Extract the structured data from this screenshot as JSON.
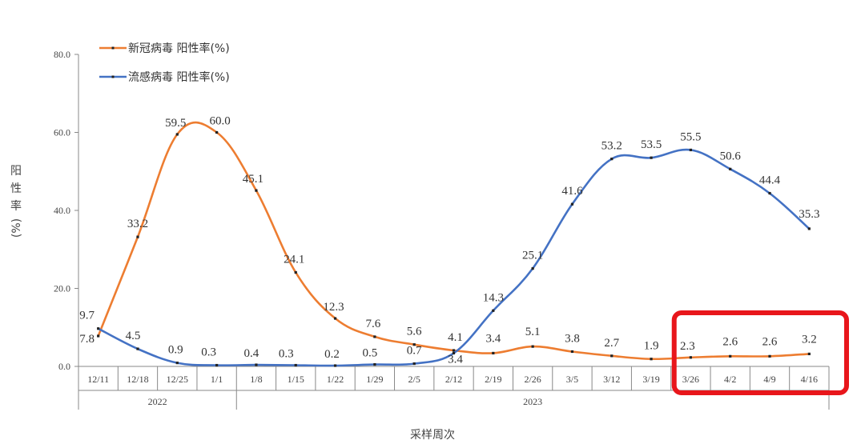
{
  "chart_data": {
    "type": "line",
    "title": "",
    "xlabel": "采样周次",
    "ylabel": [
      "阳",
      "性",
      "率",
      "(%)"
    ],
    "ylim": [
      0,
      80
    ],
    "yticks": [
      "0.0",
      "20.0",
      "40.0",
      "60.0",
      "80.0"
    ],
    "categories": [
      "12/11",
      "12/18",
      "12/25",
      "1/1",
      "1/8",
      "1/15",
      "1/22",
      "1/29",
      "2/5",
      "2/12",
      "2/19",
      "2/26",
      "3/5",
      "3/12",
      "3/19",
      "3/26",
      "4/2",
      "4/9",
      "4/16"
    ],
    "years": [
      {
        "label": "2022",
        "from": 0,
        "to": 3
      },
      {
        "label": "2023",
        "from": 4,
        "to": 18
      }
    ],
    "series": [
      {
        "name": "新冠病毒 阳性率(%)",
        "color": "#ED7D31",
        "values": [
          7.8,
          33.2,
          59.5,
          60.0,
          45.1,
          24.1,
          12.3,
          7.6,
          5.6,
          4.1,
          3.4,
          5.1,
          3.8,
          2.7,
          1.9,
          2.3,
          2.6,
          2.6,
          3.2
        ],
        "labels": [
          "7.8",
          "33.2",
          "59.5",
          "60.0",
          "45.1",
          "24.1",
          "12.3",
          "7.6",
          "5.6",
          "4.1",
          "3.4",
          "5.1",
          "3.8",
          "2.7",
          "1.9",
          "2.3",
          "2.6",
          "2.6",
          "3.2"
        ]
      },
      {
        "name": "流感病毒 阳性率(%)",
        "color": "#4472C4",
        "values": [
          9.7,
          4.5,
          0.9,
          0.3,
          0.4,
          0.3,
          0.2,
          0.5,
          0.7,
          3.4,
          14.3,
          25.1,
          41.6,
          53.2,
          53.5,
          55.5,
          50.6,
          44.4,
          35.3
        ],
        "labels": [
          "9.7",
          "4.5",
          "0.9",
          "0.3",
          "0.4",
          "0.3",
          "0.2",
          "0.5",
          "0.7",
          "3.4",
          "14.3",
          "25.1",
          "41.6",
          "53.2",
          "53.5",
          "55.5",
          "50.6",
          "44.4",
          "35.3"
        ]
      }
    ],
    "highlight": {
      "from": "3/26",
      "to": "4/16",
      "color": "#E8161B"
    }
  }
}
